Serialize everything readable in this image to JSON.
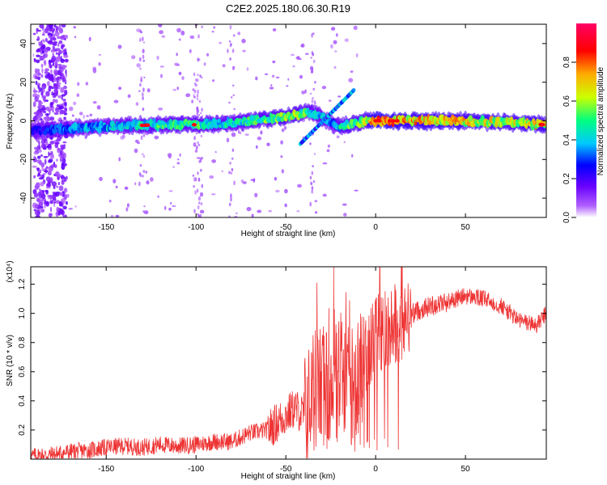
{
  "title": "C2E2.2025.180.06.30.R19",
  "chart_data": [
    {
      "type": "heatmap",
      "xlabel": "Height of straight line (km)",
      "ylabel": "Frequency (Hz)",
      "xlim": [
        -192,
        95
      ],
      "ylim": [
        -50,
        50
      ],
      "x_ticks": [
        -150,
        -100,
        -50,
        0,
        50
      ],
      "y_ticks": [
        -40,
        -20,
        0,
        20,
        40
      ],
      "colorbar": {
        "label": "Normalized spectral amplitude",
        "range": [
          0,
          1
        ],
        "ticks": [
          0.0,
          0.2,
          0.4,
          0.6,
          0.8
        ],
        "colors": [
          "#ffffff",
          "#6a00ff",
          "#0000ff",
          "#00c8ff",
          "#00ff80",
          "#ccff00",
          "#ffaa00",
          "#ff0000",
          "#ff0066"
        ]
      },
      "ridge": {
        "height_km": [
          -190,
          -170,
          -150,
          -120,
          -100,
          -80,
          -60,
          -45,
          -38,
          -30,
          -25,
          -20,
          -15,
          -5,
          0,
          20,
          50,
          80,
          93
        ],
        "frequency_hz": [
          -5,
          -4,
          -3,
          -2,
          -2,
          -1,
          1,
          3,
          5,
          2,
          -1,
          -3,
          -2,
          0,
          0,
          0,
          0,
          -1,
          -2
        ],
        "amplitude": [
          0.25,
          0.35,
          0.4,
          0.5,
          0.5,
          0.45,
          0.55,
          0.6,
          0.5,
          0.4,
          0.35,
          0.45,
          0.55,
          0.6,
          0.85,
          0.75,
          0.7,
          0.65,
          0.7
        ]
      }
    },
    {
      "type": "line",
      "xlabel": "Height of straight line (km)",
      "ylabel": "SNR (10 * v/v)",
      "scale_label": "(x10⁴)",
      "xlim": [
        -192,
        95
      ],
      "ylim": [
        0,
        1.32
      ],
      "x_ticks": [
        -150,
        -100,
        -50,
        0,
        50
      ],
      "y_ticks": [
        0.2,
        0.4,
        0.6,
        0.8,
        1.0,
        1.2
      ],
      "color": "#ee3333",
      "series": [
        {
          "x": [
            -192,
            -180,
            -170,
            -160,
            -150,
            -140,
            -130,
            -120,
            -110,
            -100,
            -90,
            -80,
            -70,
            -60,
            -50,
            -45,
            -40,
            -35,
            -30,
            -25,
            -20,
            -15,
            -10,
            -5,
            0,
            5,
            10,
            15,
            20,
            30,
            40,
            50,
            60,
            70,
            80,
            90,
            95
          ],
          "y": [
            0.02,
            0.03,
            0.05,
            0.06,
            0.08,
            0.09,
            0.08,
            0.1,
            0.09,
            0.1,
            0.12,
            0.12,
            0.18,
            0.2,
            0.3,
            0.35,
            0.3,
            0.45,
            0.5,
            0.55,
            0.6,
            0.5,
            0.55,
            0.75,
            0.85,
            0.88,
            0.95,
            0.9,
            1.0,
            1.05,
            1.08,
            1.12,
            1.1,
            1.05,
            0.95,
            0.92,
            1.0
          ]
        }
      ]
    }
  ]
}
